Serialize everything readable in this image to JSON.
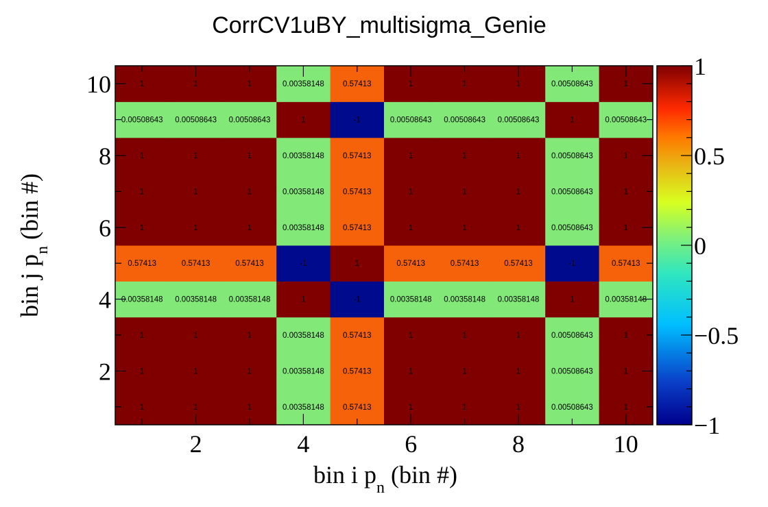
{
  "chart_data": {
    "type": "heatmap",
    "title": "CorrCV1uBY_multisigma_Genie",
    "xlabel": {
      "main": "bin i p",
      "sub": "n",
      "rest": " (bin #)"
    },
    "ylabel": {
      "main": "bin j p",
      "sub": "n",
      "rest": " (bin #)"
    },
    "xlim": [
      0.5,
      10.5
    ],
    "ylim": [
      0.5,
      10.5
    ],
    "x_ticks": [
      "2",
      "4",
      "6",
      "8",
      "10"
    ],
    "y_ticks": [
      "2",
      "4",
      "6",
      "8",
      "10"
    ],
    "colorbar": {
      "range": [
        -1,
        1
      ],
      "ticks": [
        "1",
        "0.5",
        "0",
        "−0.5",
        "−1"
      ],
      "palette": "rainbow"
    },
    "x_bins": [
      1,
      2,
      3,
      4,
      5,
      6,
      7,
      8,
      9,
      10
    ],
    "y_bins": [
      1,
      2,
      3,
      4,
      5,
      6,
      7,
      8,
      9,
      10
    ],
    "z": [
      [
        1,
        1,
        1,
        0.00358148,
        0.57413,
        1,
        1,
        1,
        0.00508643,
        1
      ],
      [
        1,
        1,
        1,
        0.00358148,
        0.57413,
        1,
        1,
        1,
        0.00508643,
        1
      ],
      [
        1,
        1,
        1,
        0.00358148,
        0.57413,
        1,
        1,
        1,
        0.00508643,
        1
      ],
      [
        0.00358148,
        0.00358148,
        0.00358148,
        1,
        -1,
        0.00358148,
        0.00358148,
        0.00358148,
        1,
        0.00358148
      ],
      [
        0.57413,
        0.57413,
        0.57413,
        -1,
        1,
        0.57413,
        0.57413,
        0.57413,
        -1,
        0.57413
      ],
      [
        1,
        1,
        1,
        0.00358148,
        0.57413,
        1,
        1,
        1,
        0.00508643,
        1
      ],
      [
        1,
        1,
        1,
        0.00358148,
        0.57413,
        1,
        1,
        1,
        0.00508643,
        1
      ],
      [
        1,
        1,
        1,
        0.00358148,
        0.57413,
        1,
        1,
        1,
        0.00508643,
        1
      ],
      [
        0.00508643,
        0.00508643,
        0.00508643,
        1,
        -1,
        0.00508643,
        0.00508643,
        0.00508643,
        1,
        0.00508643
      ],
      [
        1,
        1,
        1,
        0.00358148,
        0.57413,
        1,
        1,
        1,
        0.00508643,
        1
      ]
    ],
    "cell_labels": [
      [
        "1",
        "1",
        "1",
        "0.00358148",
        "0.57413",
        "1",
        "1",
        "1",
        "0.00508643",
        "1"
      ],
      [
        "1",
        "1",
        "1",
        "0.00358148",
        "0.57413",
        "1",
        "1",
        "1",
        "0.00508643",
        "1"
      ],
      [
        "1",
        "1",
        "1",
        "0.00358148",
        "0.57413",
        "1",
        "1",
        "1",
        "0.00508643",
        "1"
      ],
      [
        "0.00358148",
        "0.00358148",
        "0.00358148",
        "1",
        "-1",
        "0.00358148",
        "0.00358148",
        "0.00358148",
        "1",
        "0.00358148"
      ],
      [
        "0.57413",
        "0.57413",
        "0.57413",
        "-1",
        "1",
        "0.57413",
        "0.57413",
        "0.57413",
        "-1",
        "0.57413"
      ],
      [
        "1",
        "1",
        "1",
        "0.00358148",
        "0.57413",
        "1",
        "1",
        "1",
        "0.00508643",
        "1"
      ],
      [
        "1",
        "1",
        "1",
        "0.00358148",
        "0.57413",
        "1",
        "1",
        "1",
        "0.00508643",
        "1"
      ],
      [
        "1",
        "1",
        "1",
        "0.00358148",
        "0.57413",
        "1",
        "1",
        "1",
        "0.00508643",
        "1"
      ],
      [
        "0.00508643",
        "0.00508643",
        "0.00508643",
        "1",
        "-1",
        "0.00508643",
        "0.00508643",
        "0.00508643",
        "1",
        "0.00508643"
      ],
      [
        "1",
        "1",
        "1",
        "0.00358148",
        "0.57413",
        "1",
        "1",
        "1",
        "0.00508643",
        "1"
      ]
    ]
  }
}
